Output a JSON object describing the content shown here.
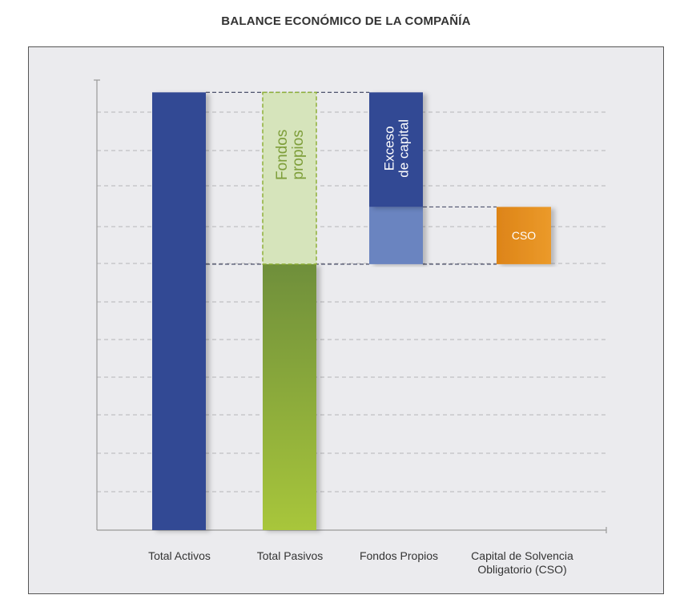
{
  "chart_data": {
    "type": "bar",
    "title": "BALANCE ECONÓMICO DE LA COMPAÑÍA",
    "categories": [
      "Total Activos",
      "Total Pasivos",
      "Fondos Propios",
      "Capital de Solvencia Obligatorio (CSO)"
    ],
    "ylim": [
      0,
      11
    ],
    "grid": true,
    "bars": [
      {
        "category": "Total Activos",
        "segments": [
          {
            "name": "",
            "start": 0,
            "end": 10.7,
            "color": "#334a94"
          }
        ]
      },
      {
        "category": "Total Pasivos",
        "segments": [
          {
            "name": "",
            "start": 0,
            "end": 6.5,
            "color": "#8fb038"
          },
          {
            "name": "Fondos propios",
            "start": 6.5,
            "end": 10.7,
            "color": "#d6e4bb"
          }
        ]
      },
      {
        "category": "Fondos Propios",
        "segments": [
          {
            "name": "",
            "start": 6.5,
            "end": 7.9,
            "color": "#6a84c0"
          },
          {
            "name": "Exceso de capital",
            "start": 7.9,
            "end": 10.7,
            "color": "#334a94"
          }
        ]
      },
      {
        "category": "Capital de Solvencia Obligatorio (CSO)",
        "segments": [
          {
            "name": "CSO",
            "start": 6.5,
            "end": 7.9,
            "color": "#e5901f"
          }
        ]
      }
    ]
  }
}
